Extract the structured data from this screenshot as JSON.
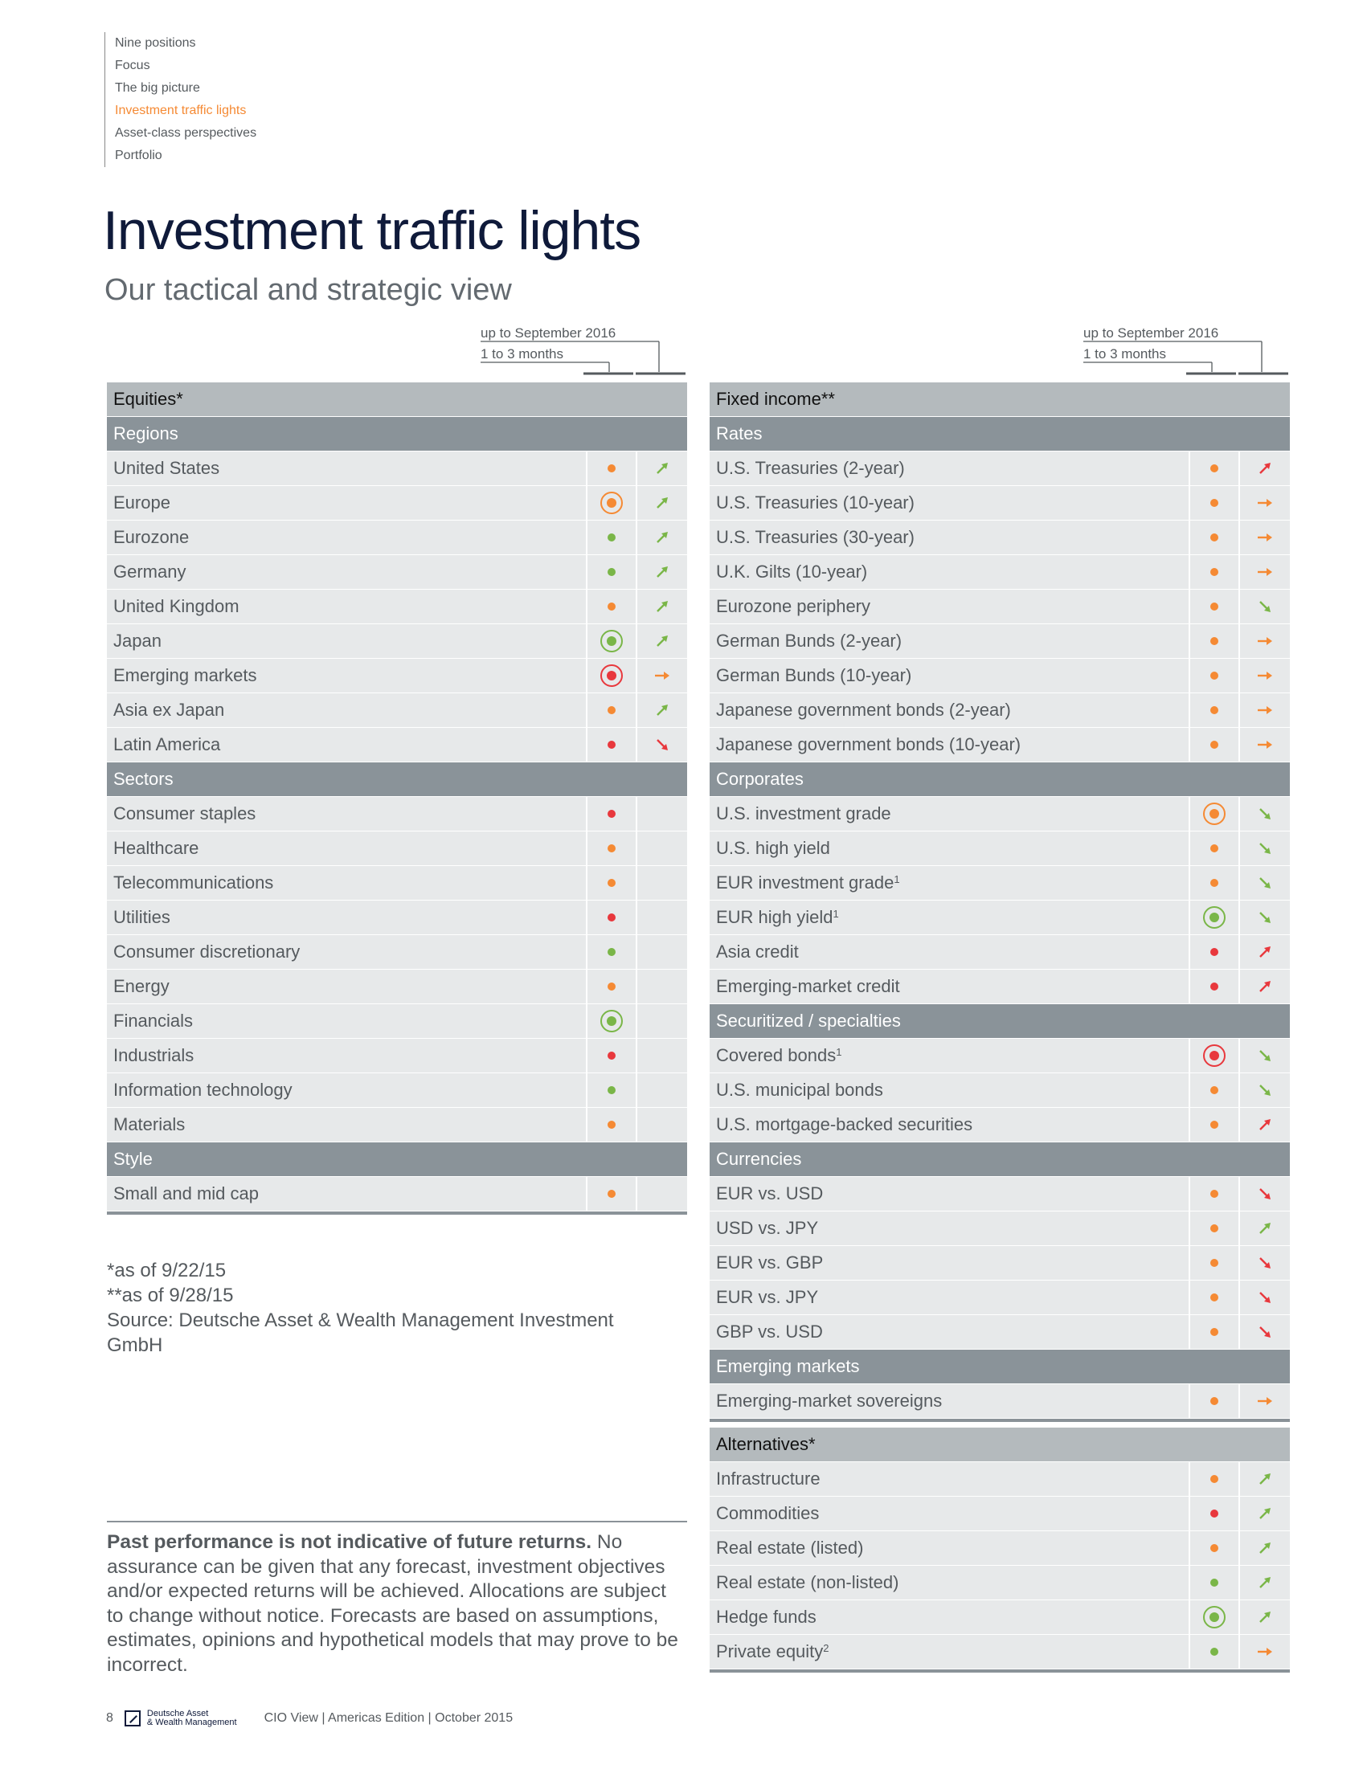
{
  "nav": [
    "Nine positions",
    "Focus",
    "The big picture",
    "Investment traffic lights",
    "Asset-class perspectives",
    "Portfolio"
  ],
  "nav_active": 3,
  "title": "Investment traffic lights",
  "subtitle": "Our tactical and strategic view",
  "legend": {
    "line1": "up to September 2016",
    "line2": "1 to 3 months"
  },
  "colors": {
    "orange": "#f58a34",
    "green": "#7ab648",
    "red": "#e8383d"
  },
  "left_table": [
    {
      "t": "h",
      "label": "Equities*"
    },
    {
      "t": "s",
      "label": "Regions"
    },
    {
      "t": "i",
      "label": "United States",
      "sup": "",
      "c1": "orange",
      "ring": false,
      "arrow": "up",
      "ac": "green"
    },
    {
      "t": "i",
      "label": "Europe",
      "sup": "",
      "c1": "orange",
      "ring": true,
      "arrow": "up",
      "ac": "green"
    },
    {
      "t": "i",
      "label": "Eurozone",
      "sup": "",
      "c1": "green",
      "ring": false,
      "arrow": "up",
      "ac": "green"
    },
    {
      "t": "i",
      "label": "Germany",
      "sup": "",
      "c1": "green",
      "ring": false,
      "arrow": "up",
      "ac": "green"
    },
    {
      "t": "i",
      "label": "United Kingdom",
      "sup": "",
      "c1": "orange",
      "ring": false,
      "arrow": "up",
      "ac": "green"
    },
    {
      "t": "i",
      "label": "Japan",
      "sup": "",
      "c1": "green",
      "ring": true,
      "arrow": "up",
      "ac": "green"
    },
    {
      "t": "i",
      "label": "Emerging markets",
      "sup": "",
      "c1": "red",
      "ring": true,
      "arrow": "right",
      "ac": "orange"
    },
    {
      "t": "i",
      "label": "Asia ex Japan",
      "sup": "",
      "c1": "orange",
      "ring": false,
      "arrow": "up",
      "ac": "green"
    },
    {
      "t": "i",
      "label": "Latin America",
      "sup": "",
      "c1": "red",
      "ring": false,
      "arrow": "down",
      "ac": "red"
    },
    {
      "t": "s",
      "label": "Sectors"
    },
    {
      "t": "i",
      "label": "Consumer staples",
      "sup": "",
      "c1": "red",
      "ring": false,
      "arrow": "",
      "ac": ""
    },
    {
      "t": "i",
      "label": "Healthcare",
      "sup": "",
      "c1": "orange",
      "ring": false,
      "arrow": "",
      "ac": ""
    },
    {
      "t": "i",
      "label": "Telecommunications",
      "sup": "",
      "c1": "orange",
      "ring": false,
      "arrow": "",
      "ac": ""
    },
    {
      "t": "i",
      "label": "Utilities",
      "sup": "",
      "c1": "red",
      "ring": false,
      "arrow": "",
      "ac": ""
    },
    {
      "t": "i",
      "label": "Consumer discretionary",
      "sup": "",
      "c1": "green",
      "ring": false,
      "arrow": "",
      "ac": ""
    },
    {
      "t": "i",
      "label": "Energy",
      "sup": "",
      "c1": "orange",
      "ring": false,
      "arrow": "",
      "ac": ""
    },
    {
      "t": "i",
      "label": "Financials",
      "sup": "",
      "c1": "green",
      "ring": true,
      "arrow": "",
      "ac": ""
    },
    {
      "t": "i",
      "label": "Industrials",
      "sup": "",
      "c1": "red",
      "ring": false,
      "arrow": "",
      "ac": ""
    },
    {
      "t": "i",
      "label": "Information technology",
      "sup": "",
      "c1": "green",
      "ring": false,
      "arrow": "",
      "ac": ""
    },
    {
      "t": "i",
      "label": "Materials",
      "sup": "",
      "c1": "orange",
      "ring": false,
      "arrow": "",
      "ac": ""
    },
    {
      "t": "s",
      "label": "Style"
    },
    {
      "t": "i",
      "label": "Small and mid cap",
      "sup": "",
      "c1": "orange",
      "ring": false,
      "arrow": "",
      "ac": ""
    }
  ],
  "right_table": [
    {
      "t": "h",
      "label": "Fixed income**"
    },
    {
      "t": "s",
      "label": "Rates"
    },
    {
      "t": "i",
      "label": "U.S. Treasuries (2-year)",
      "sup": "",
      "c1": "orange",
      "ring": false,
      "arrow": "up",
      "ac": "red"
    },
    {
      "t": "i",
      "label": "U.S. Treasuries (10-year)",
      "sup": "",
      "c1": "orange",
      "ring": false,
      "arrow": "right",
      "ac": "orange"
    },
    {
      "t": "i",
      "label": "U.S. Treasuries (30-year)",
      "sup": "",
      "c1": "orange",
      "ring": false,
      "arrow": "right",
      "ac": "orange"
    },
    {
      "t": "i",
      "label": "U.K. Gilts (10-year)",
      "sup": "",
      "c1": "orange",
      "ring": false,
      "arrow": "right",
      "ac": "orange"
    },
    {
      "t": "i",
      "label": "Eurozone periphery",
      "sup": "",
      "c1": "orange",
      "ring": false,
      "arrow": "down",
      "ac": "green"
    },
    {
      "t": "i",
      "label": "German Bunds (2-year)",
      "sup": "",
      "c1": "orange",
      "ring": false,
      "arrow": "right",
      "ac": "orange"
    },
    {
      "t": "i",
      "label": "German Bunds (10-year)",
      "sup": "",
      "c1": "orange",
      "ring": false,
      "arrow": "right",
      "ac": "orange"
    },
    {
      "t": "i",
      "label": "Japanese government bonds (2-year)",
      "sup": "",
      "c1": "orange",
      "ring": false,
      "arrow": "right",
      "ac": "orange"
    },
    {
      "t": "i",
      "label": "Japanese government bonds (10-year)",
      "sup": "",
      "c1": "orange",
      "ring": false,
      "arrow": "right",
      "ac": "orange"
    },
    {
      "t": "s",
      "label": "Corporates"
    },
    {
      "t": "i",
      "label": "U.S. investment grade",
      "sup": "",
      "c1": "orange",
      "ring": true,
      "arrow": "down",
      "ac": "green"
    },
    {
      "t": "i",
      "label": "U.S. high yield",
      "sup": "",
      "c1": "orange",
      "ring": false,
      "arrow": "down",
      "ac": "green"
    },
    {
      "t": "i",
      "label": "EUR investment grade",
      "sup": "1",
      "c1": "orange",
      "ring": false,
      "arrow": "down",
      "ac": "green"
    },
    {
      "t": "i",
      "label": "EUR high yield",
      "sup": "1",
      "c1": "green",
      "ring": true,
      "arrow": "down",
      "ac": "green"
    },
    {
      "t": "i",
      "label": "Asia credit",
      "sup": "",
      "c1": "red",
      "ring": false,
      "arrow": "up",
      "ac": "red"
    },
    {
      "t": "i",
      "label": "Emerging-market credit",
      "sup": "",
      "c1": "red",
      "ring": false,
      "arrow": "up",
      "ac": "red"
    },
    {
      "t": "s",
      "label": "Securitized / specialties"
    },
    {
      "t": "i",
      "label": "Covered bonds",
      "sup": "1",
      "c1": "red",
      "ring": true,
      "arrow": "down",
      "ac": "green"
    },
    {
      "t": "i",
      "label": "U.S. municipal bonds",
      "sup": "",
      "c1": "orange",
      "ring": false,
      "arrow": "down",
      "ac": "green"
    },
    {
      "t": "i",
      "label": "U.S. mortgage-backed securities",
      "sup": "",
      "c1": "orange",
      "ring": false,
      "arrow": "up",
      "ac": "red"
    },
    {
      "t": "s",
      "label": "Currencies"
    },
    {
      "t": "i",
      "label": "EUR vs. USD",
      "sup": "",
      "c1": "orange",
      "ring": false,
      "arrow": "down",
      "ac": "red"
    },
    {
      "t": "i",
      "label": "USD vs. JPY",
      "sup": "",
      "c1": "orange",
      "ring": false,
      "arrow": "up",
      "ac": "green"
    },
    {
      "t": "i",
      "label": "EUR vs. GBP",
      "sup": "",
      "c1": "orange",
      "ring": false,
      "arrow": "down",
      "ac": "red"
    },
    {
      "t": "i",
      "label": "EUR vs. JPY",
      "sup": "",
      "c1": "orange",
      "ring": false,
      "arrow": "down",
      "ac": "red"
    },
    {
      "t": "i",
      "label": "GBP vs. USD",
      "sup": "",
      "c1": "orange",
      "ring": false,
      "arrow": "down",
      "ac": "red"
    },
    {
      "t": "s",
      "label": "Emerging markets"
    },
    {
      "t": "i",
      "label": "Emerging-market sovereigns",
      "sup": "",
      "c1": "orange",
      "ring": false,
      "arrow": "right",
      "ac": "orange"
    }
  ],
  "alt_table": [
    {
      "t": "h",
      "label": "Alternatives*"
    },
    {
      "t": "i",
      "label": "Infrastructure",
      "sup": "",
      "c1": "orange",
      "ring": false,
      "arrow": "up",
      "ac": "green"
    },
    {
      "t": "i",
      "label": "Commodities",
      "sup": "",
      "c1": "red",
      "ring": false,
      "arrow": "up",
      "ac": "green"
    },
    {
      "t": "i",
      "label": "Real estate (listed)",
      "sup": "",
      "c1": "orange",
      "ring": false,
      "arrow": "up",
      "ac": "green"
    },
    {
      "t": "i",
      "label": "Real estate (non-listed)",
      "sup": "",
      "c1": "green",
      "ring": false,
      "arrow": "up",
      "ac": "green"
    },
    {
      "t": "i",
      "label": "Hedge funds",
      "sup": "",
      "c1": "green",
      "ring": true,
      "arrow": "up",
      "ac": "green"
    },
    {
      "t": "i",
      "label": "Private equity",
      "sup": "2",
      "c1": "green",
      "ring": false,
      "arrow": "right",
      "ac": "orange"
    }
  ],
  "notes": [
    "*as of 9/22/15",
    "**as of 9/28/15",
    "Source: Deutsche Asset & Wealth Management Investment GmbH"
  ],
  "disclaimer": {
    "bold": "Past performance is not indicative of future returns.",
    "text": " No assurance can be given that any forecast, investment objectives and/or expected returns will be achieved. Allocations are subject to change without notice. Forecasts are based on assumptions, estimates, opinions and hypothetical models that may prove to be incorrect."
  },
  "footer": {
    "page": "8",
    "logo_line1": "Deutsche Asset",
    "logo_line2": "& Wealth Management",
    "text": "CIO View | Americas Edition | October 2015"
  }
}
